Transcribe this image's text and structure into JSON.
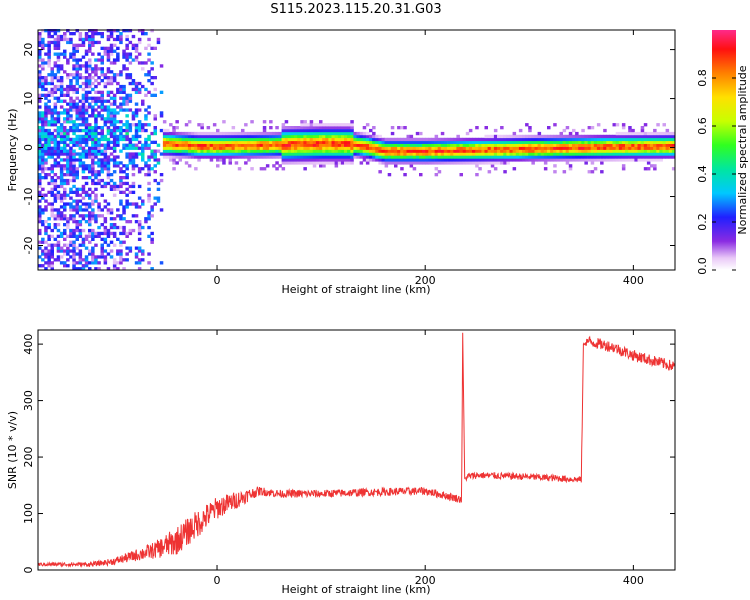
{
  "figure_title": "S115.2023.115.20.31.G03",
  "chart_data": [
    {
      "type": "heatmap",
      "title": "",
      "xlabel": "Height of straight line (km)",
      "ylabel": "Frequency (Hz)",
      "xlim": [
        -172,
        440
      ],
      "ylim": [
        -25,
        24
      ],
      "xticks": [
        "0",
        "200",
        "400"
      ],
      "xtick_values": [
        0,
        200,
        400
      ],
      "yticks": [
        "-20",
        "-10",
        "0",
        "10",
        "20"
      ],
      "ytick_values": [
        -20,
        -10,
        0,
        10,
        20
      ],
      "colorbar": {
        "label": "Normalized spectral amplitude",
        "ticks": [
          "0.0",
          "0.2",
          "0.4",
          "0.6",
          "0.8"
        ],
        "tick_values": [
          0.0,
          0.2,
          0.4,
          0.6,
          0.8
        ],
        "range": [
          0,
          1
        ],
        "colormap": "white-purple-blue-cyan-green-yellow-orange-red-magenta"
      },
      "ridge": {
        "description": "dominant spectral ridge vs height",
        "x": [
          -110,
          -90,
          -70,
          -60,
          -50,
          -40,
          -30,
          -20,
          0,
          50,
          100,
          125,
          140,
          160,
          175,
          200,
          250,
          300,
          350,
          400,
          440
        ],
        "y": [
          2,
          1.5,
          1,
          0.5,
          0.5,
          0.3,
          0.2,
          0,
          0,
          0.2,
          0.5,
          0.5,
          0,
          -1,
          -1,
          -1,
          -0.8,
          -0.5,
          -0.3,
          -0.1,
          0
        ],
        "peak_amplitude": 0.95
      },
      "noise_region": {
        "x_range": [
          -172,
          -55
        ],
        "freq_range": [
          -25,
          24
        ],
        "amplitude_range": [
          0.05,
          0.3
        ]
      }
    },
    {
      "type": "line",
      "title": "",
      "xlabel": "Height of straight line (km)",
      "ylabel": "SNR (10 * v/v)",
      "xlim": [
        -172,
        440
      ],
      "ylim": [
        0,
        425
      ],
      "xticks": [
        "0",
        "200",
        "400"
      ],
      "xtick_values": [
        0,
        200,
        400
      ],
      "yticks": [
        "0",
        "100",
        "200",
        "300",
        "400"
      ],
      "ytick_values": [
        0,
        100,
        200,
        300,
        400
      ],
      "color": "#ee3333",
      "series": [
        {
          "x": [
            -172,
            -120,
            -100,
            -80,
            -60,
            -40,
            -20,
            0,
            20,
            40,
            60,
            100,
            150,
            200,
            235,
            236,
            238,
            240,
            250,
            300,
            350,
            352,
            356,
            380,
            400,
            420,
            440
          ],
          "values": [
            10,
            10,
            15,
            25,
            35,
            50,
            80,
            110,
            125,
            140,
            135,
            135,
            138,
            140,
            125,
            420,
            160,
            165,
            168,
            165,
            160,
            400,
            405,
            395,
            380,
            370,
            360
          ],
          "noise": [
            3,
            4,
            6,
            10,
            15,
            25,
            25,
            20,
            15,
            8,
            7,
            7,
            7,
            7,
            7,
            0,
            5,
            6,
            6,
            6,
            6,
            0,
            10,
            10,
            10,
            10,
            10
          ]
        }
      ]
    }
  ]
}
